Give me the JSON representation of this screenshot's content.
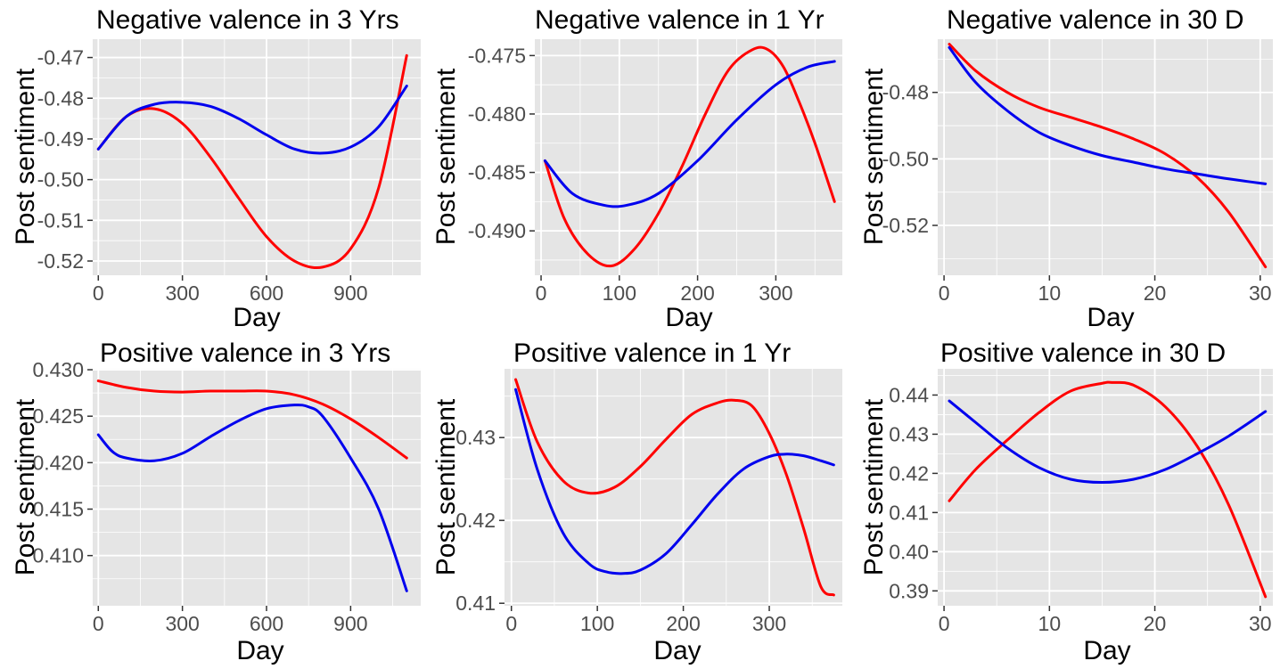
{
  "colors": {
    "panel_bg": "#e5e5e5",
    "grid": "#ffffff",
    "tick": "#333333",
    "red_series": "#ff0000",
    "blue_series": "#0000ee"
  },
  "chart_data": [
    {
      "type": "line",
      "title": "Negative valence in 3 Yrs",
      "xlabel": "Day",
      "ylabel": "Post sentiment",
      "xlim": [
        -20,
        1150
      ],
      "ylim": [
        -0.5235,
        -0.4655
      ],
      "xticks": [
        0,
        300,
        600,
        900
      ],
      "xtick_labels": [
        "0",
        "300",
        "600",
        "900"
      ],
      "yticks": [
        -0.52,
        -0.51,
        -0.5,
        -0.49,
        -0.48,
        -0.47
      ],
      "ytick_labels": [
        "-0.52",
        "-0.51",
        "-0.50",
        "-0.49",
        "-0.48",
        "-0.47"
      ],
      "grid": true,
      "series": [
        {
          "color": "#ff0000",
          "x": [
            0,
            100,
            200,
            300,
            400,
            500,
            600,
            700,
            800,
            900,
            1000,
            1100
          ],
          "y": [
            -0.4925,
            -0.4845,
            -0.4826,
            -0.4862,
            -0.4945,
            -0.5045,
            -0.514,
            -0.52,
            -0.5215,
            -0.517,
            -0.502,
            -0.4695
          ]
        },
        {
          "color": "#0000ee",
          "x": [
            0,
            100,
            200,
            300,
            400,
            500,
            600,
            700,
            800,
            900,
            1000,
            1100
          ],
          "y": [
            -0.4925,
            -0.4845,
            -0.4815,
            -0.481,
            -0.482,
            -0.485,
            -0.489,
            -0.4925,
            -0.4935,
            -0.492,
            -0.487,
            -0.477
          ]
        }
      ]
    },
    {
      "type": "line",
      "title": "Negative valence in 1 Yr",
      "xlabel": "Day",
      "ylabel": "Post sentiment",
      "xlim": [
        -8,
        385
      ],
      "ylim": [
        -0.4938,
        -0.4736
      ],
      "xticks": [
        0,
        100,
        200,
        300
      ],
      "xtick_labels": [
        "0",
        "100",
        "200",
        "300"
      ],
      "yticks": [
        -0.49,
        -0.485,
        -0.48,
        -0.475
      ],
      "ytick_labels": [
        "-0.490",
        "-0.485",
        "-0.480",
        "-0.475"
      ],
      "grid": true,
      "series": [
        {
          "color": "#ff0000",
          "x": [
            5,
            30,
            60,
            90,
            120,
            150,
            180,
            210,
            240,
            270,
            290,
            310,
            330,
            350,
            375
          ],
          "y": [
            -0.484,
            -0.489,
            -0.492,
            -0.493,
            -0.4915,
            -0.4885,
            -0.4845,
            -0.48,
            -0.4762,
            -0.4745,
            -0.4745,
            -0.476,
            -0.479,
            -0.4825,
            -0.4875
          ]
        },
        {
          "color": "#0000ee",
          "x": [
            5,
            40,
            80,
            110,
            150,
            200,
            250,
            300,
            340,
            375
          ],
          "y": [
            -0.484,
            -0.4868,
            -0.4878,
            -0.4878,
            -0.4868,
            -0.484,
            -0.4805,
            -0.4775,
            -0.476,
            -0.4755
          ]
        }
      ]
    },
    {
      "type": "line",
      "title": "Negative valence in 30 D",
      "xlabel": "Day",
      "ylabel": "Post sentiment",
      "xlim": [
        -0.6,
        31.2
      ],
      "ylim": [
        -0.535,
        -0.464
      ],
      "xticks": [
        0,
        10,
        20,
        30
      ],
      "xtick_labels": [
        "0",
        "10",
        "20",
        "30"
      ],
      "yticks": [
        -0.52,
        -0.5,
        -0.48
      ],
      "ytick_labels": [
        "-0.52",
        "-0.50",
        "-0.48"
      ],
      "grid": true,
      "series": [
        {
          "color": "#ff0000",
          "x": [
            0.5,
            3,
            6,
            9,
            12,
            15,
            18,
            21,
            24,
            27,
            30.5
          ],
          "y": [
            -0.4655,
            -0.4735,
            -0.48,
            -0.4845,
            -0.4875,
            -0.4905,
            -0.494,
            -0.4985,
            -0.5055,
            -0.516,
            -0.5325
          ]
        },
        {
          "color": "#0000ee",
          "x": [
            0.5,
            3,
            6,
            9,
            12,
            15,
            18,
            21,
            24,
            27,
            30.5
          ],
          "y": [
            -0.4665,
            -0.477,
            -0.4855,
            -0.492,
            -0.496,
            -0.499,
            -0.501,
            -0.503,
            -0.5045,
            -0.506,
            -0.5075
          ]
        }
      ]
    },
    {
      "type": "line",
      "title": "Positive valence in 3 Yrs",
      "xlabel": "Day",
      "ylabel": "Post sentiment",
      "xlim": [
        -20,
        1150
      ],
      "ylim": [
        0.4046,
        0.4301
      ],
      "xticks": [
        0,
        300,
        600,
        900
      ],
      "xtick_labels": [
        "0",
        "300",
        "600",
        "900"
      ],
      "yticks": [
        0.41,
        0.415,
        0.42,
        0.425,
        0.43
      ],
      "ytick_labels": [
        "0.410",
        "0.415",
        "0.420",
        "0.425",
        "0.430"
      ],
      "grid": true,
      "series": [
        {
          "color": "#ff0000",
          "x": [
            0,
            100,
            200,
            300,
            400,
            500,
            600,
            700,
            800,
            900,
            1000,
            1100
          ],
          "y": [
            0.4288,
            0.4281,
            0.4277,
            0.4276,
            0.4277,
            0.4277,
            0.4277,
            0.4273,
            0.4263,
            0.4247,
            0.4227,
            0.4205
          ]
        },
        {
          "color": "#0000ee",
          "x": [
            0,
            50,
            100,
            200,
            300,
            400,
            500,
            600,
            700,
            750,
            800,
            900,
            1000,
            1100
          ],
          "y": [
            0.423,
            0.4212,
            0.4205,
            0.4202,
            0.421,
            0.4228,
            0.4245,
            0.4258,
            0.4262,
            0.426,
            0.425,
            0.4205,
            0.415,
            0.4062
          ]
        }
      ]
    },
    {
      "type": "line",
      "title": "Positive valence in 1 Yr",
      "xlabel": "Day",
      "ylabel": "Post sentiment",
      "xlim": [
        -8,
        385
      ],
      "ylim": [
        0.4097,
        0.4383
      ],
      "xticks": [
        0,
        100,
        200,
        300
      ],
      "xtick_labels": [
        "0",
        "100",
        "200",
        "300"
      ],
      "yticks": [
        0.41,
        0.42,
        0.43
      ],
      "ytick_labels": [
        "0.41",
        "0.42",
        "0.43"
      ],
      "grid": true,
      "series": [
        {
          "color": "#ff0000",
          "x": [
            5,
            30,
            60,
            90,
            120,
            150,
            180,
            210,
            240,
            260,
            280,
            300,
            320,
            340,
            360,
            375
          ],
          "y": [
            0.437,
            0.4295,
            0.4248,
            0.4233,
            0.424,
            0.4265,
            0.4298,
            0.4328,
            0.4342,
            0.4345,
            0.4338,
            0.4305,
            0.4255,
            0.419,
            0.412,
            0.411
          ]
        },
        {
          "color": "#0000ee",
          "x": [
            5,
            30,
            60,
            90,
            110,
            130,
            150,
            180,
            210,
            240,
            270,
            300,
            320,
            340,
            360,
            375
          ],
          "y": [
            0.4358,
            0.4262,
            0.4185,
            0.4148,
            0.4138,
            0.4136,
            0.414,
            0.416,
            0.4195,
            0.4232,
            0.4262,
            0.4277,
            0.428,
            0.4278,
            0.4272,
            0.4267
          ]
        }
      ]
    },
    {
      "type": "line",
      "title": "Positive valence in 30 D",
      "xlabel": "Day",
      "ylabel": "Post sentiment",
      "xlim": [
        -0.6,
        31.2
      ],
      "ylim": [
        0.3862,
        0.4467
      ],
      "xticks": [
        0,
        10,
        20,
        30
      ],
      "xtick_labels": [
        "0",
        "10",
        "20",
        "30"
      ],
      "yticks": [
        0.39,
        0.4,
        0.41,
        0.42,
        0.43,
        0.44
      ],
      "ytick_labels": [
        "0.39",
        "0.40",
        "0.41",
        "0.42",
        "0.43",
        "0.44"
      ],
      "grid": true,
      "series": [
        {
          "color": "#ff0000",
          "x": [
            0.5,
            3,
            6,
            9,
            12,
            15,
            16,
            18,
            21,
            24,
            27,
            30.5
          ],
          "y": [
            0.413,
            0.421,
            0.4285,
            0.4355,
            0.441,
            0.443,
            0.4432,
            0.4425,
            0.437,
            0.427,
            0.412,
            0.3885
          ]
        },
        {
          "color": "#0000ee",
          "x": [
            0.5,
            3,
            6,
            9,
            12,
            15,
            18,
            21,
            24,
            27,
            30.5
          ],
          "y": [
            0.4385,
            0.433,
            0.4265,
            0.4215,
            0.4185,
            0.4177,
            0.4185,
            0.421,
            0.425,
            0.4295,
            0.4358
          ]
        }
      ]
    }
  ]
}
